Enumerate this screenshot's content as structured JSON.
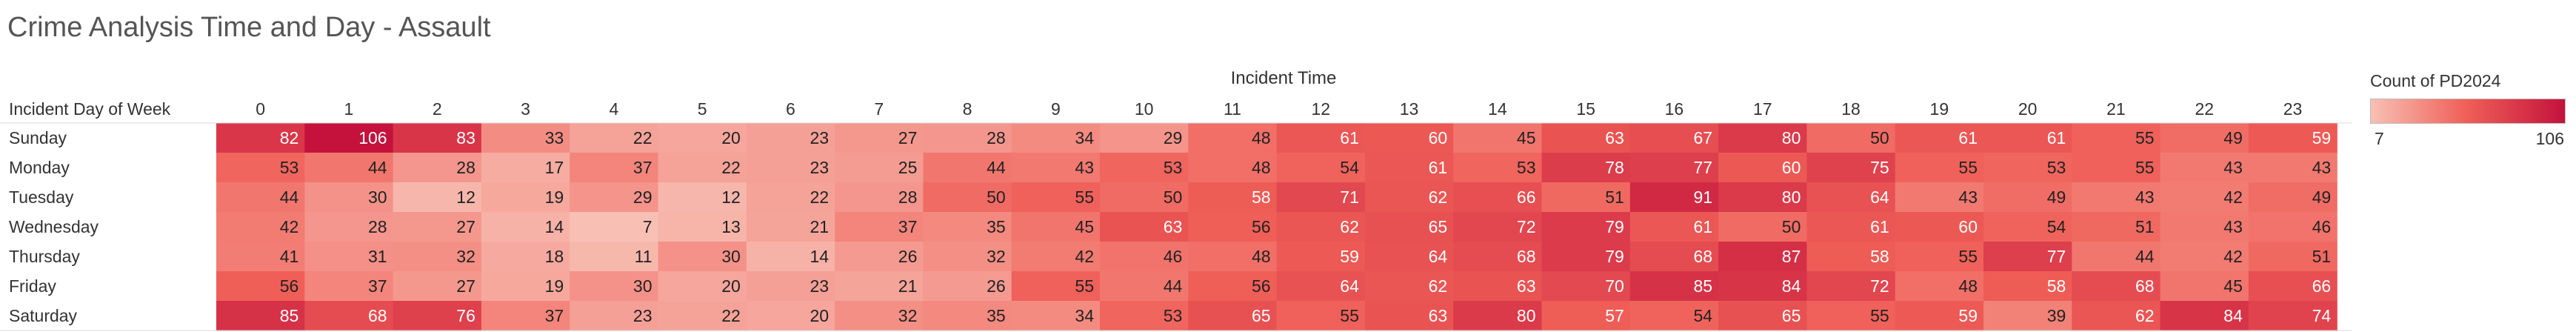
{
  "title": "Crime Analysis Time and Day - Assault",
  "chart_data": {
    "type": "heatmap",
    "title": "Crime Analysis Time and Day - Assault",
    "xlabel": "Incident Time",
    "ylabel": "Incident Day of Week",
    "x": [
      "0",
      "1",
      "2",
      "3",
      "4",
      "5",
      "6",
      "7",
      "8",
      "9",
      "10",
      "11",
      "12",
      "13",
      "14",
      "15",
      "16",
      "17",
      "18",
      "19",
      "20",
      "21",
      "22",
      "23"
    ],
    "y": [
      "Sunday",
      "Monday",
      "Tuesday",
      "Wednesday",
      "Thursday",
      "Friday",
      "Saturday"
    ],
    "values": [
      [
        82,
        106,
        83,
        33,
        22,
        20,
        23,
        27,
        28,
        34,
        29,
        48,
        61,
        60,
        45,
        63,
        67,
        80,
        50,
        61,
        61,
        55,
        49,
        59
      ],
      [
        53,
        44,
        28,
        17,
        37,
        22,
        23,
        25,
        44,
        43,
        53,
        48,
        54,
        61,
        53,
        78,
        77,
        60,
        75,
        55,
        53,
        55,
        43,
        43
      ],
      [
        44,
        30,
        12,
        19,
        29,
        12,
        22,
        28,
        50,
        55,
        50,
        58,
        71,
        62,
        66,
        51,
        91,
        80,
        64,
        43,
        49,
        43,
        42,
        49
      ],
      [
        42,
        28,
        27,
        14,
        7,
        13,
        21,
        37,
        35,
        45,
        63,
        56,
        62,
        65,
        72,
        79,
        61,
        50,
        61,
        60,
        54,
        51,
        43,
        46
      ],
      [
        41,
        31,
        32,
        18,
        11,
        30,
        14,
        26,
        32,
        42,
        46,
        48,
        59,
        64,
        68,
        79,
        68,
        87,
        58,
        55,
        77,
        44,
        42,
        51
      ],
      [
        56,
        37,
        27,
        19,
        30,
        20,
        23,
        21,
        26,
        55,
        44,
        56,
        64,
        62,
        63,
        70,
        85,
        84,
        72,
        48,
        58,
        68,
        45,
        66
      ],
      [
        85,
        68,
        76,
        37,
        23,
        22,
        20,
        32,
        35,
        34,
        53,
        65,
        55,
        63,
        80,
        57,
        54,
        65,
        55,
        59,
        39,
        62,
        84,
        74
      ]
    ],
    "color_scale": {
      "title": "Count of PD2024",
      "min": 7,
      "max": 106,
      "low_color": "#f8c0b4",
      "mid_color": "#ef5e57",
      "high_color": "#c4123c"
    }
  }
}
